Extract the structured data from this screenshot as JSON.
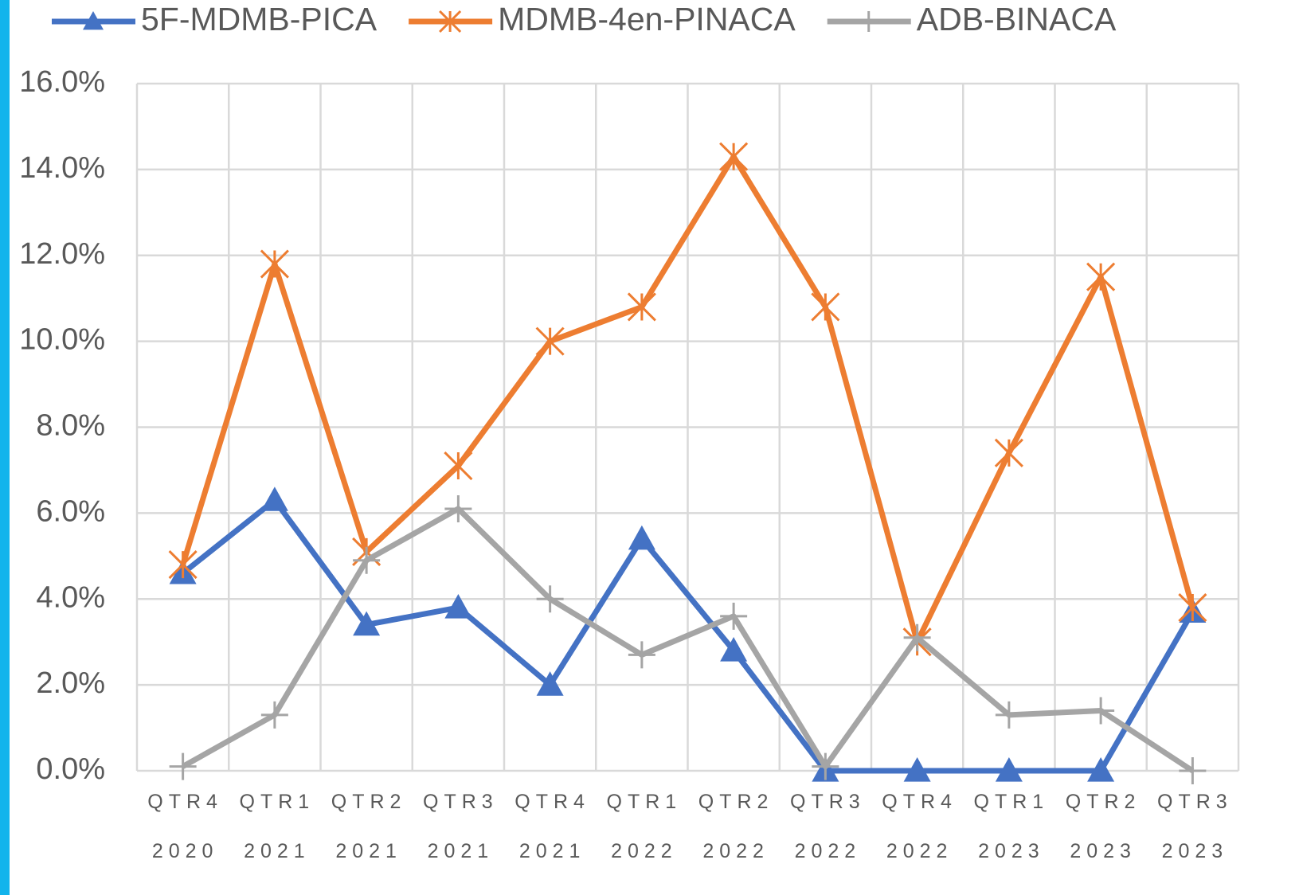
{
  "chart_data": {
    "type": "line",
    "categories": [
      "QTR4 2020",
      "QTR1 2021",
      "QTR2 2021",
      "QTR3 2021",
      "QTR4 2021",
      "QTR1 2022",
      "QTR2 2022",
      "QTR3 2022",
      "QTR4 2022",
      "QTR1 2023",
      "QTR2 2023",
      "QTR3 2023"
    ],
    "series": [
      {
        "name": "5F-MDMB-PICA",
        "color": "#4472c4",
        "marker": "triangle",
        "values": [
          4.6,
          6.3,
          3.4,
          3.8,
          2.0,
          5.4,
          2.8,
          0,
          0,
          0,
          0,
          3.7
        ]
      },
      {
        "name": "MDMB-4en-PINACA",
        "color": "#ed7d31",
        "marker": "star",
        "values": [
          4.8,
          11.8,
          5.1,
          7.1,
          10.0,
          10.8,
          14.3,
          10.8,
          3.0,
          7.4,
          11.5,
          3.8
        ]
      },
      {
        "name": "ADB-BINACA",
        "color": "#a5a5a5",
        "marker": "plus",
        "values": [
          0.1,
          1.3,
          4.9,
          6.1,
          4.0,
          2.7,
          3.6,
          0.1,
          3.1,
          1.3,
          1.4,
          0.0
        ]
      }
    ],
    "ylim": [
      0,
      16
    ],
    "yticks": [
      {
        "value": 0,
        "label": "0.0%"
      },
      {
        "value": 2,
        "label": "2.0%"
      },
      {
        "value": 4,
        "label": "4.0%"
      },
      {
        "value": 6,
        "label": "6.0%"
      },
      {
        "value": 8,
        "label": "8.0%"
      },
      {
        "value": 10,
        "label": "10.0%"
      },
      {
        "value": 12,
        "label": "12.0%"
      },
      {
        "value": 14,
        "label": "14.0%"
      },
      {
        "value": 16,
        "label": "16.0%"
      }
    ],
    "grid": true,
    "legend": "top"
  }
}
